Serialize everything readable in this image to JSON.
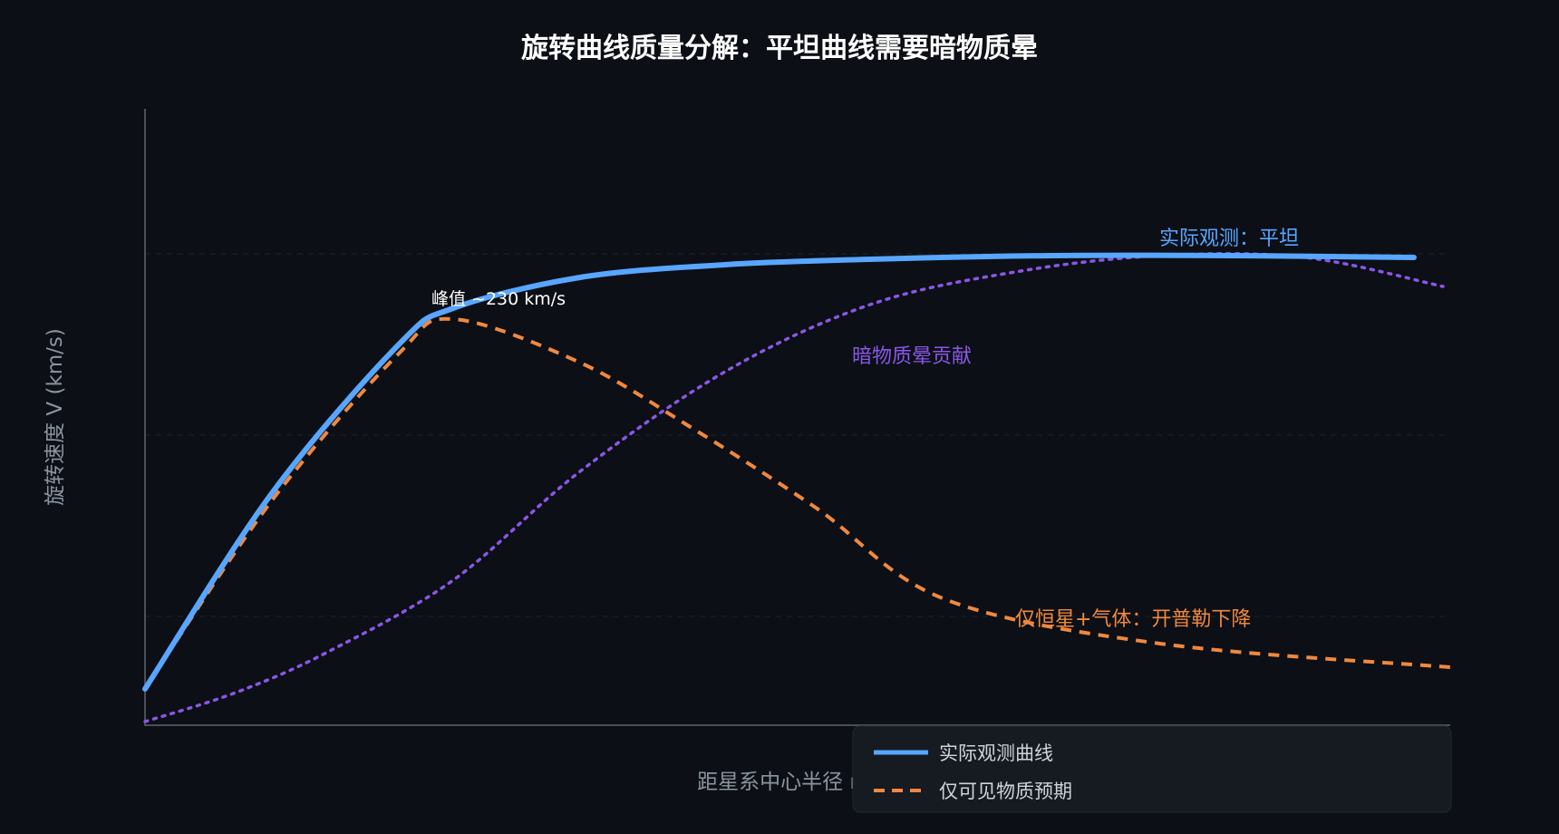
{
  "chart_data": {
    "type": "line",
    "title": "旋转曲线质量分解：平坦曲线需要暗物质晕",
    "xlabel": "距星系中心半径 r",
    "ylabel": "旋转速度 V (km/s)",
    "xlim": [
      0,
      36
    ],
    "ylim": [
      0,
      340
    ],
    "grid": "y-dashed",
    "gridlines": [
      60,
      160,
      260
    ],
    "series": [
      {
        "name": "实际观测曲线",
        "style": "solid",
        "color": "#58a6ff",
        "points": [
          [
            0,
            20
          ],
          [
            3.5,
            128
          ],
          [
            7,
            210
          ],
          [
            8.5,
            230
          ],
          [
            12,
            247
          ],
          [
            16,
            254
          ],
          [
            20,
            257
          ],
          [
            25,
            259
          ],
          [
            30,
            259
          ],
          [
            35,
            258
          ]
        ]
      },
      {
        "name": "仅可见物质预期",
        "style": "dashed",
        "color": "#f0883e",
        "points": [
          [
            0,
            20
          ],
          [
            3.5,
            124
          ],
          [
            7,
            205
          ],
          [
            8.5,
            224
          ],
          [
            12,
            200
          ],
          [
            15,
            165
          ],
          [
            18.5,
            120
          ],
          [
            22,
            70
          ],
          [
            28,
            45
          ],
          [
            36,
            32
          ]
        ]
      },
      {
        "name": "暗物质晕贡献",
        "style": "dotted",
        "color": "#8957e5",
        "points": [
          [
            0,
            2
          ],
          [
            2.5,
            18
          ],
          [
            5,
            40
          ],
          [
            8.5,
            80
          ],
          [
            12,
            140
          ],
          [
            16,
            195
          ],
          [
            20,
            232
          ],
          [
            24,
            250
          ],
          [
            28,
            259
          ],
          [
            32,
            258
          ],
          [
            35.8,
            242
          ]
        ]
      }
    ],
    "annotations": [
      {
        "text": "峰值 ~230 km/s",
        "color": "#ffffff"
      },
      {
        "text": "实际观测：平坦",
        "color": "#58a6ff"
      },
      {
        "text": "暗物质晕贡献",
        "color": "#8957e5"
      },
      {
        "text": "仅恒星+气体：开普勒下降",
        "color": "#f0883e"
      }
    ],
    "legend": {
      "position": "bottom-right",
      "entries": [
        {
          "label": "实际观测曲线",
          "style": "solid",
          "color": "#58a6ff"
        },
        {
          "label": "仅可见物质预期",
          "style": "dashed",
          "color": "#f0883e"
        }
      ]
    }
  },
  "colors": {
    "background": "#0c0f16",
    "axis": "#4a5058",
    "grid": "#1e232b",
    "title": "#ffffff",
    "axis_label": "#8b949e",
    "legend_bg": "#161a21",
    "legend_text": "#d0d4da"
  }
}
